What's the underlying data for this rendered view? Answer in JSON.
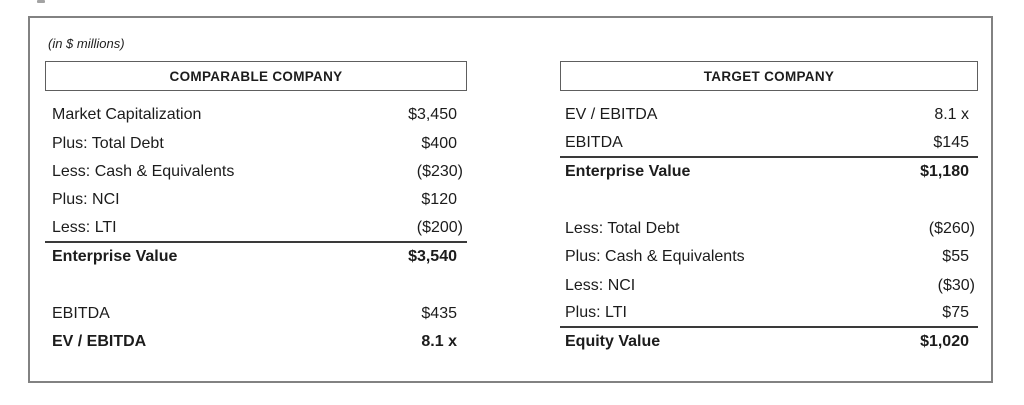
{
  "note": "(in $ millions)",
  "tables": {
    "left": {
      "header": "COMPARABLE COMPANY",
      "rows": [
        {
          "label": "Market Capitalization",
          "value": "$3,450"
        },
        {
          "label": "Plus: Total Debt",
          "value": "$400"
        },
        {
          "label": "Less: Cash & Equivalents",
          "value": "($230)"
        },
        {
          "label": "Plus: NCI",
          "value": "$120"
        },
        {
          "label": "Less: LTI",
          "value": "($200)",
          "underline": true
        },
        {
          "label": "Enterprise Value",
          "value": "$3,540",
          "bold": true
        },
        {
          "label": "",
          "value": "",
          "blank": true
        },
        {
          "label": "EBITDA",
          "value": "$435"
        },
        {
          "label": "EV / EBITDA",
          "value": "8.1 x",
          "bold": true
        }
      ]
    },
    "right": {
      "header": "TARGET COMPANY",
      "rows": [
        {
          "label": "EV / EBITDA",
          "value": "8.1 x"
        },
        {
          "label": "EBITDA",
          "value": "$145",
          "underline": true
        },
        {
          "label": "Enterprise Value",
          "value": "$1,180",
          "bold": true
        },
        {
          "label": "",
          "value": "",
          "blank": true
        },
        {
          "label": "Less: Total Debt",
          "value": "($260)"
        },
        {
          "label": "Plus: Cash & Equivalents",
          "value": "$55"
        },
        {
          "label": "Less: NCI",
          "value": "($30)"
        },
        {
          "label": "Plus: LTI",
          "value": "$75",
          "underline": true
        },
        {
          "label": "Equity Value",
          "value": "$1,020",
          "bold": true
        }
      ]
    }
  },
  "colors": {
    "text": "#1c1c1c",
    "outer_border": "#828282",
    "header_border": "#5e5e5e",
    "rule_line": "#3a3a3a",
    "background": "#ffffff"
  }
}
